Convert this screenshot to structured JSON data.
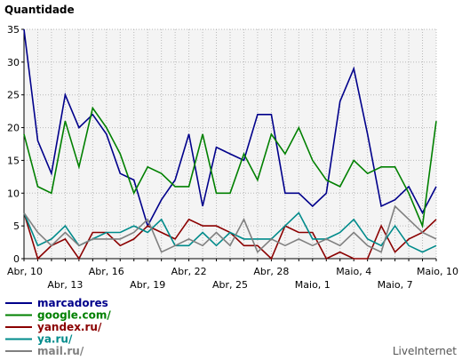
{
  "chart_data": {
    "type": "line",
    "title": "Quantidade",
    "ylim": [
      0,
      35
    ],
    "yticks": [
      0,
      5,
      10,
      15,
      20,
      25,
      30,
      35
    ],
    "grid": true,
    "legend_position": "bottom-left",
    "x": [
      "Abr, 10",
      "Abr, 11",
      "Abr, 12",
      "Abr, 13",
      "Abr, 14",
      "Abr, 15",
      "Abr, 16",
      "Abr, 17",
      "Abr, 18",
      "Abr, 19",
      "Abr, 20",
      "Abr, 21",
      "Abr, 22",
      "Abr, 23",
      "Abr, 24",
      "Abr, 25",
      "Abr, 26",
      "Abr, 27",
      "Abr, 28",
      "Abr, 29",
      "Abr, 30",
      "Maio, 1",
      "Maio, 2",
      "Maio, 3",
      "Maio, 4",
      "Maio, 5",
      "Maio, 6",
      "Maio, 7",
      "Maio, 8",
      "Maio, 9",
      "Maio, 10"
    ],
    "xticks_row1": [
      "Abr, 10",
      "Abr, 16",
      "Abr, 22",
      "Abr, 28",
      "Maio, 4",
      "Maio, 10"
    ],
    "xticks_row2": [
      "Abr, 13",
      "Abr, 19",
      "Abr, 25",
      "Maio, 1",
      "Maio, 7"
    ],
    "series": [
      {
        "name": "marcadores",
        "color": "#00008b",
        "values": [
          35,
          18,
          13,
          25,
          20,
          22,
          19,
          13,
          12,
          5,
          9,
          12,
          19,
          8,
          17,
          16,
          15,
          22,
          22,
          10,
          10,
          8,
          10,
          24,
          29,
          19,
          8,
          9,
          11,
          7,
          11
        ]
      },
      {
        "name": "google.com/",
        "color": "#008000",
        "values": [
          19,
          11,
          10,
          21,
          14,
          23,
          20,
          16,
          10,
          14,
          13,
          11,
          11,
          19,
          10,
          10,
          16,
          12,
          19,
          16,
          20,
          15,
          12,
          11,
          15,
          13,
          14,
          14,
          10,
          5,
          21
        ]
      },
      {
        "name": "yandex.ru/",
        "color": "#8b0000",
        "values": [
          7,
          0,
          2,
          3,
          0,
          4,
          4,
          2,
          3,
          5,
          4,
          3,
          6,
          5,
          5,
          4,
          2,
          2,
          0,
          5,
          4,
          4,
          0,
          1,
          0,
          0,
          5,
          1,
          3,
          4,
          6
        ]
      },
      {
        "name": "ya.ru/",
        "color": "#008b8b",
        "values": [
          7,
          2,
          3,
          5,
          2,
          3,
          4,
          4,
          5,
          4,
          6,
          2,
          2,
          4,
          2,
          4,
          3,
          3,
          3,
          5,
          7,
          3,
          3,
          4,
          6,
          3,
          2,
          5,
          2,
          1,
          2
        ]
      },
      {
        "name": "mail.ru/",
        "color": "#808080",
        "values": [
          7,
          4,
          2,
          4,
          2,
          3,
          3,
          3,
          4,
          6,
          1,
          2,
          3,
          2,
          4,
          2,
          6,
          1,
          3,
          2,
          3,
          2,
          3,
          2,
          4,
          2,
          1,
          8,
          6,
          4,
          3
        ]
      }
    ]
  },
  "watermark": "LiveInternet"
}
